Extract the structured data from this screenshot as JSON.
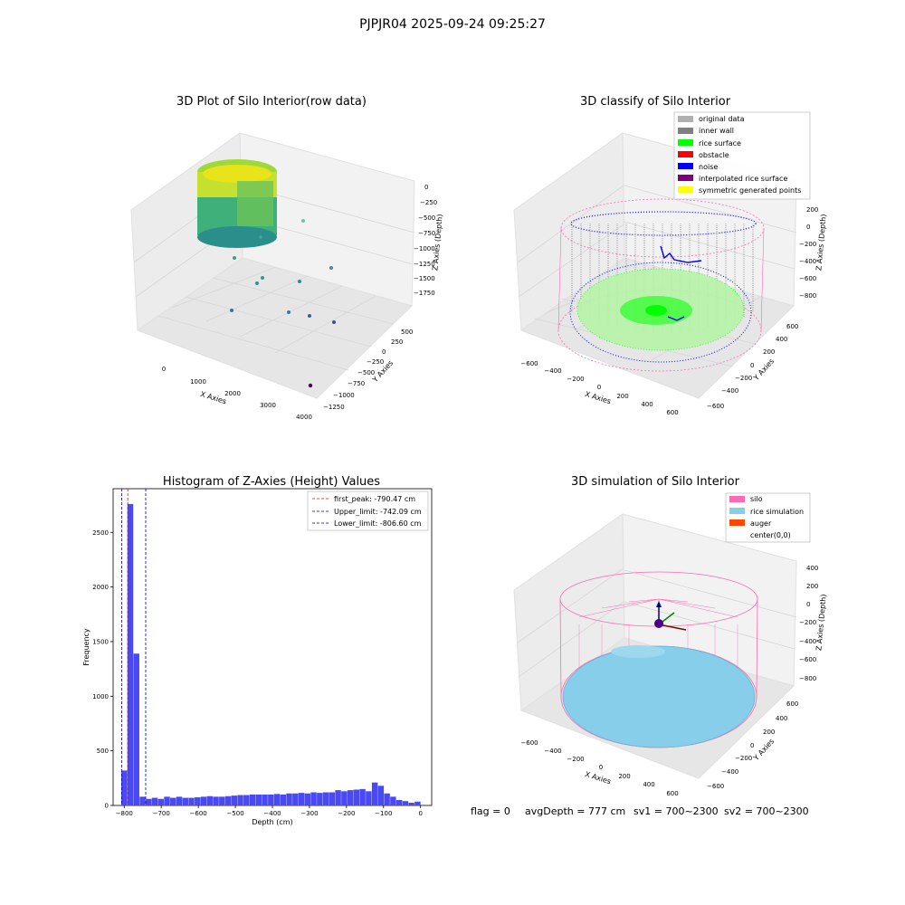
{
  "figure": {
    "suptitle": "PJPJR04 2025-09-24 09:25:27",
    "status": {
      "flag": "flag = 0",
      "avg": "avgDepth = 777 cm",
      "sv1": "sv1 = 700~2300",
      "sv2": "sv2 = 700~2300"
    }
  },
  "colors": {
    "pane": "#f2f2f2",
    "pane_dark": "#e9e9e9",
    "grid": "#dcdcdc",
    "pink": "#ff69b4",
    "inner_wall": "#808080",
    "rice_green": "#00ff00",
    "noise_blue": "#0000ff",
    "rice_sim": "#87ceeb",
    "hist_bar": "#4a4af5"
  },
  "panels": {
    "raw": {
      "title": "3D Plot of Silo Interior(row data)",
      "xlabel": "X Axies",
      "ylabel": "Y Axies",
      "zlabel": "Z Axies (Depth)",
      "xticks": [
        "0",
        "1000",
        "2000",
        "3000",
        "4000"
      ],
      "yticks": [
        "500",
        "250",
        "0",
        "−250",
        "−500",
        "−750",
        "−1000",
        "−1250"
      ],
      "zticks": [
        "0",
        "−250",
        "−500",
        "−750",
        "−1000",
        "−1250",
        "−1500",
        "−1750"
      ]
    },
    "classify": {
      "title": "3D classify of Silo Interior",
      "xlabel": "X Axies",
      "ylabel": "Y Axies",
      "zlabel": "Z Axies (Depth)",
      "xticks": [
        "−600",
        "−400",
        "−200",
        "0",
        "200",
        "400",
        "600"
      ],
      "yticks": [
        "600",
        "400",
        "200",
        "0",
        "−200",
        "−400",
        "−600"
      ],
      "zticks": [
        "200",
        "0",
        "−200",
        "−400",
        "−600",
        "−800"
      ],
      "legend": [
        {
          "label": "original data",
          "color": "#b0b0b0"
        },
        {
          "label": "inner wall",
          "color": "#808080"
        },
        {
          "label": "rice surface",
          "color": "#00ff00"
        },
        {
          "label": "obstacle",
          "color": "#ff0000"
        },
        {
          "label": "noise",
          "color": "#0000ff"
        },
        {
          "label": "interpolated rice surface",
          "color": "#800080"
        },
        {
          "label": "symmetric generated points",
          "color": "#ffff00"
        }
      ]
    },
    "simulation": {
      "title": "3D simulation of Silo Interior",
      "xlabel": "X Axies",
      "ylabel": "Y Axies",
      "zlabel": "Z Axies (Depth)",
      "xticks": [
        "−600",
        "−400",
        "−200",
        "0",
        "200",
        "400",
        "600"
      ],
      "yticks": [
        "600",
        "400",
        "200",
        "0",
        "−200",
        "−400",
        "−600"
      ],
      "zticks": [
        "400",
        "200",
        "0",
        "−200",
        "−400",
        "−600",
        "−800"
      ],
      "legend": [
        {
          "label": "silo",
          "color": "#ff69b4"
        },
        {
          "label": "rice simulation",
          "color": "#87ceeb"
        },
        {
          "label": "auger",
          "color": "#ff4500"
        },
        {
          "label": "center(0,0)",
          "color": ""
        }
      ]
    }
  },
  "chart_data": [
    {
      "type": "bar",
      "title": "Histogram of Z-Axies (Height) Values",
      "xlabel": "Depth (cm)",
      "ylabel": "Frequency",
      "xlim": [
        -830,
        30
      ],
      "ylim": [
        0,
        2900
      ],
      "xticks": [
        -800,
        -700,
        -600,
        -500,
        -400,
        -300,
        -200,
        -100,
        0
      ],
      "yticks": [
        0,
        500,
        1000,
        1500,
        2000,
        2500
      ],
      "bin_width": 16.5,
      "bin_start": -808,
      "values": [
        320,
        2760,
        1390,
        80,
        60,
        70,
        60,
        80,
        70,
        80,
        70,
        70,
        75,
        80,
        85,
        80,
        80,
        85,
        90,
        95,
        95,
        100,
        100,
        100,
        100,
        105,
        100,
        110,
        110,
        115,
        110,
        120,
        115,
        120,
        120,
        140,
        130,
        140,
        145,
        150,
        130,
        210,
        180,
        110,
        80,
        50,
        40,
        25,
        35
      ],
      "legend": [
        {
          "label": "first_peak: -790.47 cm",
          "color": "#ff0000"
        },
        {
          "label": "Upper_limit: -742.09 cm",
          "color": "#0000aa"
        },
        {
          "label": "Lower_limit: -806.60 cm",
          "color": "#0000aa"
        }
      ],
      "vlines": [
        {
          "x": -790.47,
          "color": "#ff0000"
        },
        {
          "x": -742.09,
          "color": "#0000aa"
        },
        {
          "x": -806.6,
          "color": "#0000aa"
        }
      ],
      "legend_position": "top-right",
      "grid": false
    }
  ]
}
